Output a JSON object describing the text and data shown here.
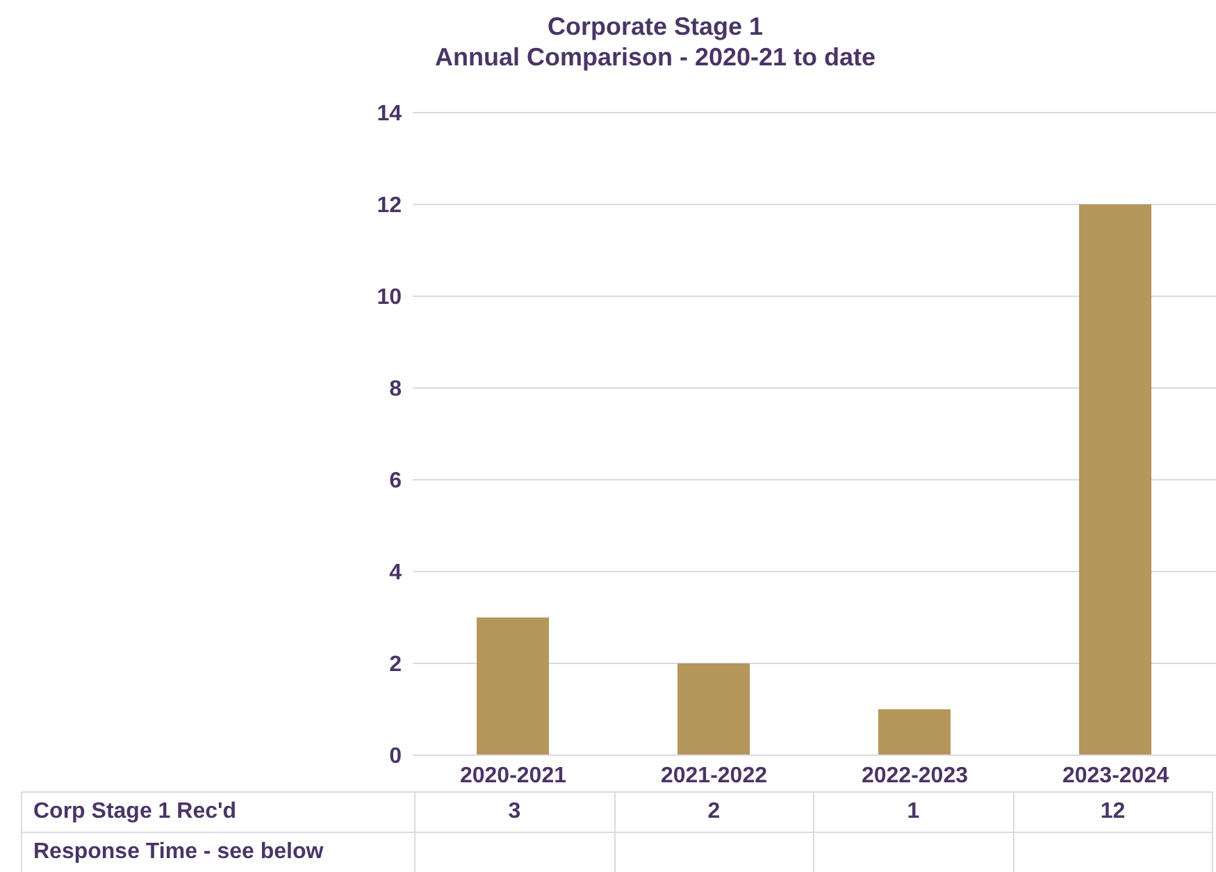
{
  "chart_data": {
    "type": "bar",
    "title": "Corporate Stage 1",
    "subtitle": "Annual Comparison - 2020-21 to date",
    "categories": [
      "2020-2021",
      "2021-2022",
      "2022-2023",
      "2023-2024"
    ],
    "series": [
      {
        "name": "Corp Stage 1 Rec'd",
        "color": "#b5965b",
        "values": [
          3,
          2,
          1,
          12
        ]
      },
      {
        "name": "Response Time - see below",
        "values": [
          null,
          null,
          null,
          null
        ]
      }
    ],
    "ylim": [
      0,
      14
    ],
    "yticks": [
      0,
      2,
      4,
      6,
      8,
      10,
      12,
      14
    ],
    "grid": "y",
    "data_labels": true,
    "legend": false
  }
}
